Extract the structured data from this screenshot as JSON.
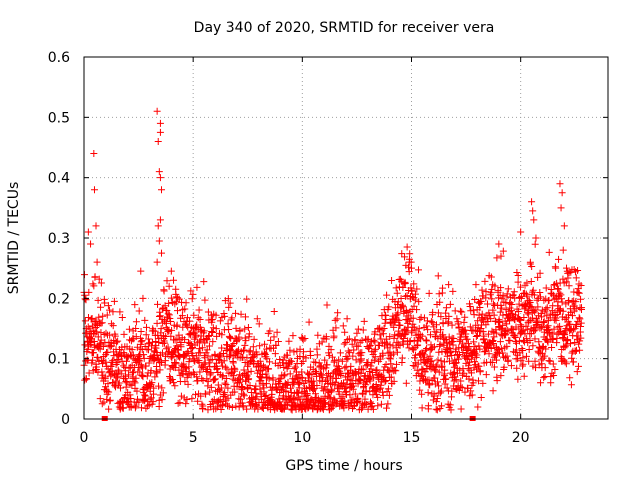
{
  "chart_data": {
    "type": "scatter",
    "title": "Day 340 of 2020, SRMTID for receiver vera",
    "xlabel": "GPS time / hours",
    "ylabel": "SRMTID / TECUs",
    "xlim": [
      0,
      24
    ],
    "ylim": [
      0,
      0.6
    ],
    "grid": true,
    "marker": "+",
    "colors": {
      "points": "#ff0000",
      "grid": "#a0a0a0",
      "axes": "#000000"
    },
    "xticks": [
      {
        "value": 0,
        "label": "0"
      },
      {
        "value": 5,
        "label": "5"
      },
      {
        "value": 10,
        "label": "10"
      },
      {
        "value": 15,
        "label": "15"
      },
      {
        "value": 20,
        "label": "20"
      }
    ],
    "yticks": [
      {
        "value": 0,
        "label": "0"
      },
      {
        "value": 0.1,
        "label": "0.1"
      },
      {
        "value": 0.2,
        "label": "0.2"
      },
      {
        "value": 0.3,
        "label": "0.3"
      },
      {
        "value": 0.4,
        "label": "0.4"
      },
      {
        "value": 0.5,
        "label": "0.5"
      },
      {
        "value": 0.6,
        "label": "0.6"
      }
    ],
    "baseline_markers_x": [
      0.95,
      17.8
    ],
    "series": [
      {
        "name": "SRMTID",
        "approximate_trend": [
          {
            "x": 0.0,
            "y": 0.13
          },
          {
            "x": 0.5,
            "y": 0.14
          },
          {
            "x": 1.0,
            "y": 0.09
          },
          {
            "x": 1.5,
            "y": 0.08
          },
          {
            "x": 2.0,
            "y": 0.07
          },
          {
            "x": 2.5,
            "y": 0.08
          },
          {
            "x": 3.0,
            "y": 0.07
          },
          {
            "x": 3.5,
            "y": 0.13
          },
          {
            "x": 4.0,
            "y": 0.13
          },
          {
            "x": 4.5,
            "y": 0.11
          },
          {
            "x": 5.0,
            "y": 0.11
          },
          {
            "x": 5.5,
            "y": 0.1
          },
          {
            "x": 6.0,
            "y": 0.08
          },
          {
            "x": 6.5,
            "y": 0.08
          },
          {
            "x": 7.0,
            "y": 0.09
          },
          {
            "x": 7.5,
            "y": 0.07
          },
          {
            "x": 8.0,
            "y": 0.07
          },
          {
            "x": 8.5,
            "y": 0.05
          },
          {
            "x": 9.0,
            "y": 0.045
          },
          {
            "x": 9.5,
            "y": 0.05
          },
          {
            "x": 10.0,
            "y": 0.055
          },
          {
            "x": 10.5,
            "y": 0.045
          },
          {
            "x": 11.0,
            "y": 0.04
          },
          {
            "x": 11.5,
            "y": 0.07
          },
          {
            "x": 12.0,
            "y": 0.07
          },
          {
            "x": 12.5,
            "y": 0.065
          },
          {
            "x": 13.0,
            "y": 0.07
          },
          {
            "x": 13.5,
            "y": 0.09
          },
          {
            "x": 14.0,
            "y": 0.11
          },
          {
            "x": 14.5,
            "y": 0.16
          },
          {
            "x": 15.0,
            "y": 0.2
          },
          {
            "x": 15.5,
            "y": 0.1
          },
          {
            "x": 16.0,
            "y": 0.1
          },
          {
            "x": 16.5,
            "y": 0.11
          },
          {
            "x": 17.0,
            "y": 0.1
          },
          {
            "x": 17.5,
            "y": 0.11
          },
          {
            "x": 18.0,
            "y": 0.13
          },
          {
            "x": 18.5,
            "y": 0.15
          },
          {
            "x": 19.0,
            "y": 0.15
          },
          {
            "x": 19.5,
            "y": 0.16
          },
          {
            "x": 20.0,
            "y": 0.16
          },
          {
            "x": 20.5,
            "y": 0.17
          },
          {
            "x": 21.0,
            "y": 0.14
          },
          {
            "x": 21.5,
            "y": 0.17
          },
          {
            "x": 22.0,
            "y": 0.16
          },
          {
            "x": 22.5,
            "y": 0.16
          },
          {
            "x": 22.8,
            "y": 0.17
          }
        ],
        "approximate_spread": 0.045,
        "notable_peaks": [
          {
            "x": 0.2,
            "y": 0.31
          },
          {
            "x": 0.3,
            "y": 0.29
          },
          {
            "x": 0.45,
            "y": 0.44
          },
          {
            "x": 0.48,
            "y": 0.38
          },
          {
            "x": 0.55,
            "y": 0.32
          },
          {
            "x": 0.6,
            "y": 0.26
          },
          {
            "x": 0.5,
            "y": 0.235
          },
          {
            "x": 2.6,
            "y": 0.245
          },
          {
            "x": 2.7,
            "y": 0.2
          },
          {
            "x": 3.35,
            "y": 0.51
          },
          {
            "x": 3.5,
            "y": 0.49
          },
          {
            "x": 3.5,
            "y": 0.475
          },
          {
            "x": 3.4,
            "y": 0.46
          },
          {
            "x": 3.45,
            "y": 0.41
          },
          {
            "x": 3.5,
            "y": 0.4
          },
          {
            "x": 3.55,
            "y": 0.38
          },
          {
            "x": 3.5,
            "y": 0.33
          },
          {
            "x": 3.4,
            "y": 0.32
          },
          {
            "x": 3.45,
            "y": 0.295
          },
          {
            "x": 3.55,
            "y": 0.275
          },
          {
            "x": 3.35,
            "y": 0.26
          },
          {
            "x": 4.0,
            "y": 0.245
          },
          {
            "x": 4.1,
            "y": 0.23
          },
          {
            "x": 3.9,
            "y": 0.22
          },
          {
            "x": 4.2,
            "y": 0.215
          },
          {
            "x": 14.8,
            "y": 0.285
          },
          {
            "x": 14.9,
            "y": 0.26
          },
          {
            "x": 15.0,
            "y": 0.25
          },
          {
            "x": 19.0,
            "y": 0.29
          },
          {
            "x": 19.1,
            "y": 0.27
          },
          {
            "x": 20.0,
            "y": 0.31
          },
          {
            "x": 20.5,
            "y": 0.36
          },
          {
            "x": 20.55,
            "y": 0.345
          },
          {
            "x": 20.6,
            "y": 0.33
          },
          {
            "x": 20.7,
            "y": 0.3
          },
          {
            "x": 21.8,
            "y": 0.39
          },
          {
            "x": 21.9,
            "y": 0.375
          },
          {
            "x": 21.85,
            "y": 0.35
          },
          {
            "x": 22.0,
            "y": 0.32
          },
          {
            "x": 21.95,
            "y": 0.28
          },
          {
            "x": 22.1,
            "y": 0.25
          }
        ]
      }
    ]
  }
}
